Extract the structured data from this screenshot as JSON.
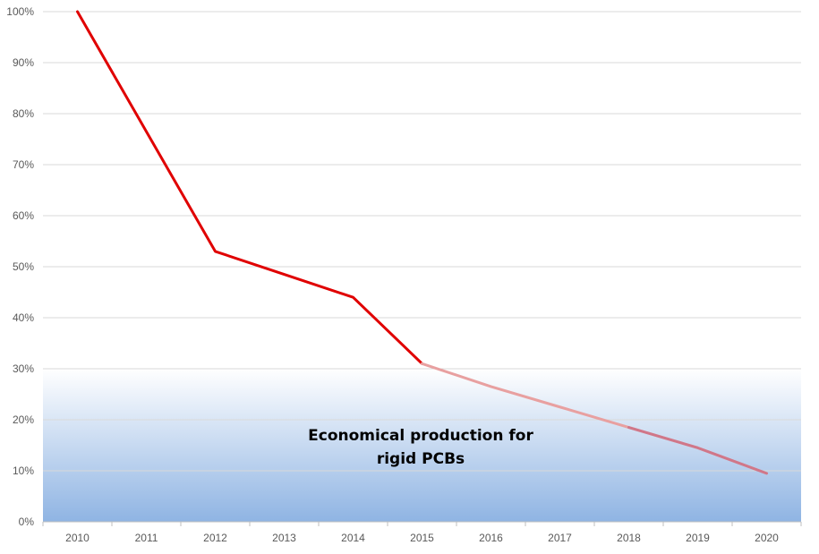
{
  "chart_data": {
    "type": "line",
    "title": "",
    "xlabel": "",
    "ylabel": "",
    "categories": [
      "2010",
      "2011",
      "2012",
      "2013",
      "2014",
      "2015",
      "2016",
      "2017",
      "2018",
      "2019",
      "2020"
    ],
    "series": [
      {
        "values": [
          100,
          76.5,
          53,
          48.5,
          44,
          31,
          26.5,
          22.5,
          18.5,
          14.5,
          9.5
        ],
        "color": "#e00000",
        "projected_from": "2015",
        "projected_color": "#e8a0a0"
      }
    ],
    "ylim": [
      0,
      100
    ],
    "yticks": [
      "0%",
      "10%",
      "20%",
      "30%",
      "40%",
      "50%",
      "60%",
      "70%",
      "80%",
      "90%",
      "100%"
    ],
    "grid": true,
    "region": {
      "from": 0,
      "to": 30,
      "color_top": "#ffffff",
      "color_bottom": "#8fb4e3"
    },
    "annotation": {
      "line1": "Economical production for",
      "line2": "rigid PCBs"
    }
  }
}
